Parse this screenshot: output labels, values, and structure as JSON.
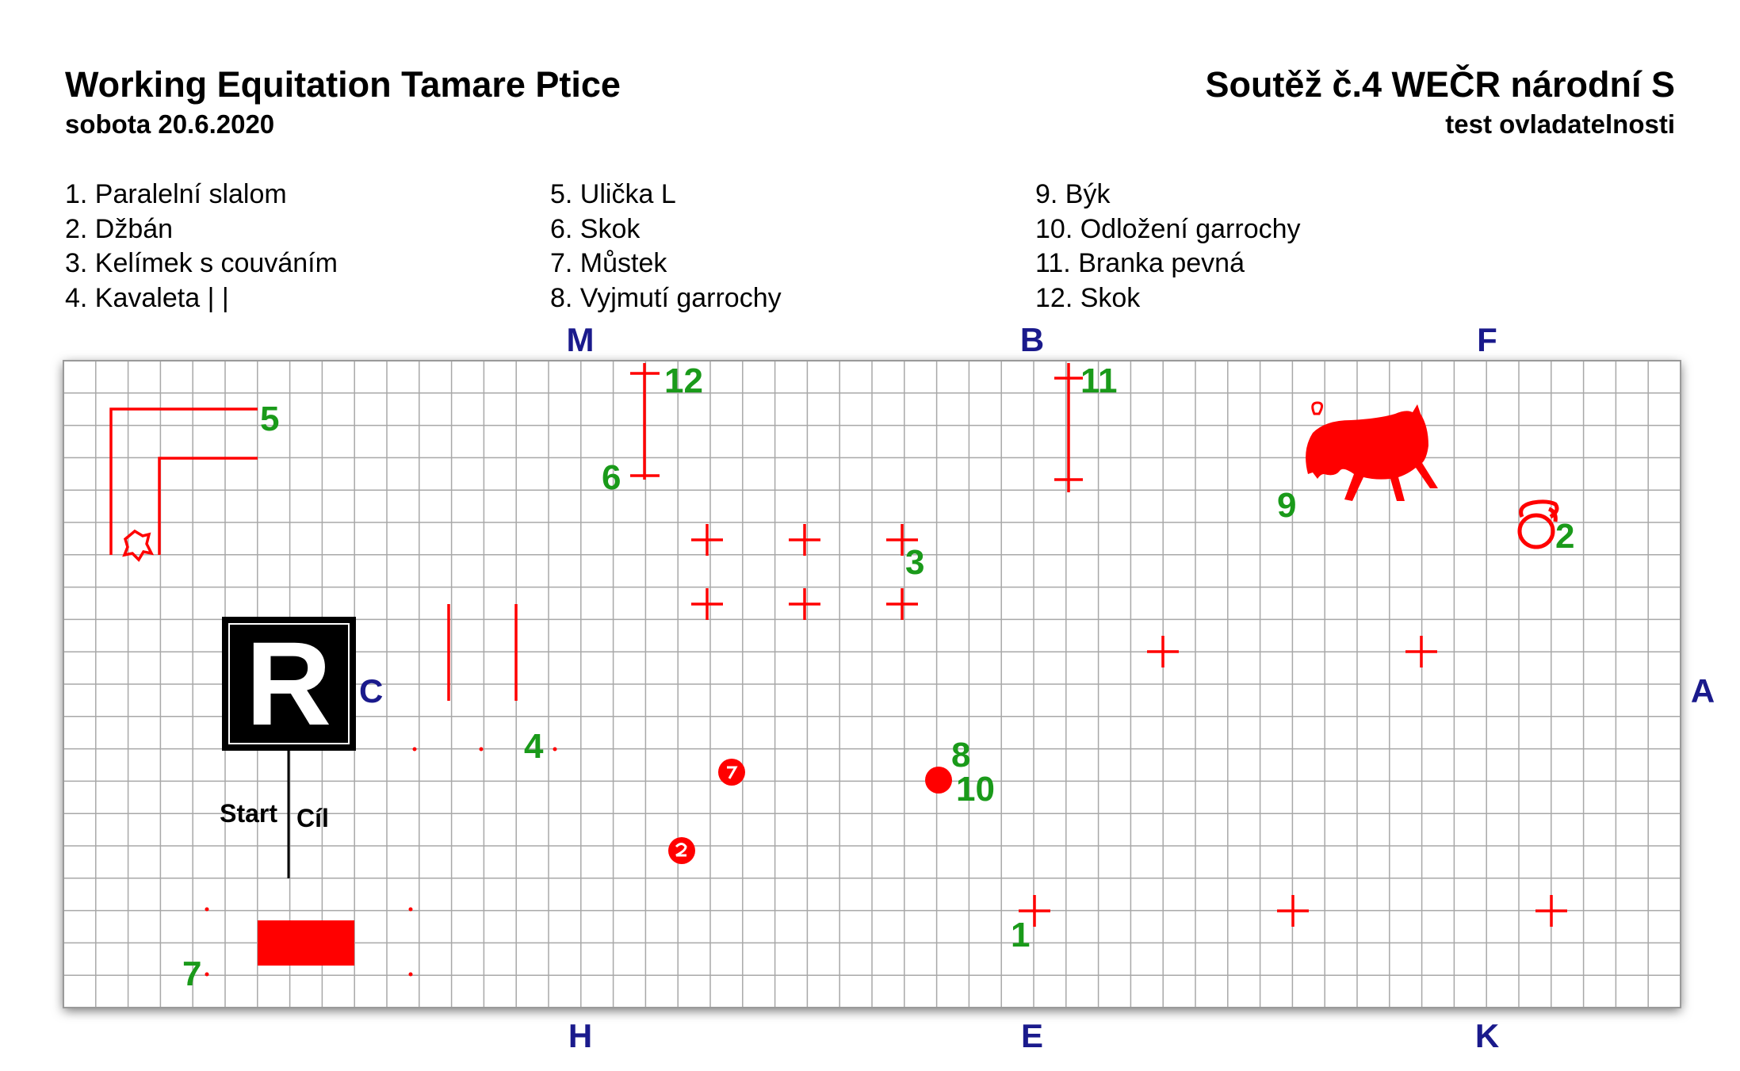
{
  "header": {
    "event_title": "Working Equitation Tamare Ptice",
    "event_date": "sobota 20.6.2020",
    "competition": "Soutěž č.4 WEČR národní S",
    "test_name": "test ovladatelnosti"
  },
  "legend": {
    "col1": [
      "1. Paralelní slalom",
      "2. Džbán",
      "3. Kelímek s couváním",
      "4. Kavaleta | |"
    ],
    "col2": [
      "5. Ulička L",
      "6. Skok",
      "7. Můstek",
      "8. Vyjmutí garrochy"
    ],
    "col3": [
      "9. Býk",
      "10. Odložení garrochy",
      "11. Branka pevná",
      "12. Skok"
    ]
  },
  "arena_letters": {
    "M": "M",
    "B": "B",
    "F": "F",
    "H": "H",
    "E": "E",
    "K": "K",
    "C": "C",
    "A": "A"
  },
  "obstacle_numbers": {
    "n1": "1",
    "n2": "2",
    "n3": "3",
    "n4": "4",
    "n5": "5",
    "n6": "6",
    "n7": "7",
    "n8": "8",
    "n9": "9",
    "n10": "10",
    "n11": "11",
    "n12": "12"
  },
  "judge_box": {
    "letter": "R"
  },
  "start_finish": {
    "start": "Start",
    "finish": "Cíl"
  },
  "colors": {
    "obstacle": "#ff0000",
    "number": "#1a9a1a",
    "letter": "#1a1a8c",
    "grid": "#a8a8a8"
  }
}
